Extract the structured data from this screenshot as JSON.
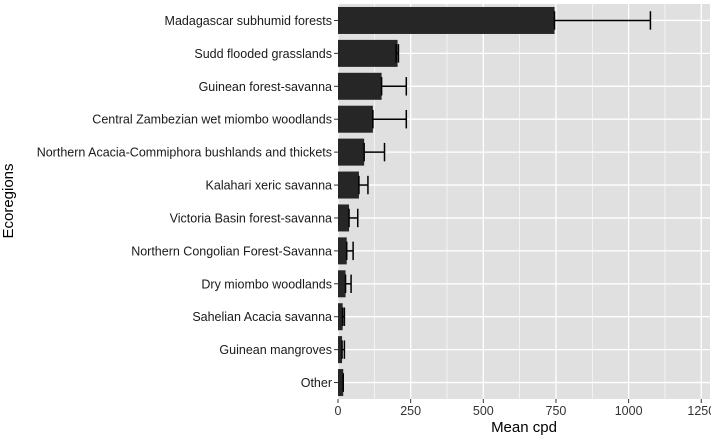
{
  "chart_data": {
    "type": "bar",
    "orientation": "horizontal",
    "title": "",
    "xlabel": "Mean cpd",
    "ylabel": "Ecoregions",
    "xlim": [
      0,
      1280
    ],
    "x_ticks": [
      0,
      250,
      500,
      750,
      1000,
      1250
    ],
    "grid": true,
    "categories": [
      "Madagascar subhumid forests",
      "Sudd flooded grasslands",
      "Guinean forest-savanna",
      "Central Zambezian wet miombo woodlands",
      "Northern Acacia-Commiphora bushlands and thickets",
      "Kalahari xeric savanna",
      "Victoria Basin forest-savanna",
      "Northern Congolian Forest-Savanna",
      "Dry miombo woodlands",
      "Sahelian Acacia savanna",
      "Guinean mangroves",
      "Other"
    ],
    "values": [
      745,
      205,
      150,
      120,
      90,
      72,
      38,
      30,
      26,
      16,
      14,
      18
    ],
    "error_upper": [
      1075,
      208,
      235,
      235,
      160,
      103,
      68,
      52,
      45,
      22,
      22,
      18
    ],
    "error_lower": [
      745,
      200,
      150,
      120,
      90,
      72,
      38,
      30,
      26,
      16,
      14,
      18
    ]
  },
  "colors": {
    "panel": "#e0e0e0",
    "grid": "#ffffff",
    "bar": "#262626",
    "errorbar": "#000000"
  }
}
